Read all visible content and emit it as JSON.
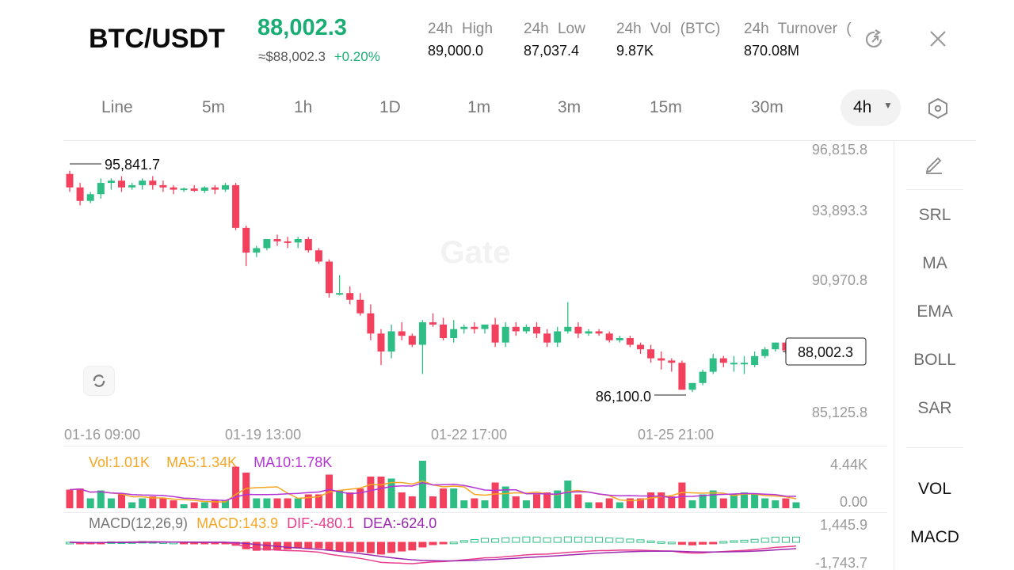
{
  "header": {
    "pair": "BTC/USDT",
    "price": "88,002.3",
    "fiat_price": "≈$88,002.3",
    "change": "+0.20%",
    "stats": [
      {
        "label": "24h High",
        "value": "89,000.0"
      },
      {
        "label": "24h Low",
        "value": "87,037.4"
      },
      {
        "label": "24h Vol (BTC)",
        "value": "9.87K"
      },
      {
        "label": "24h Turnover (",
        "value": "870.08M"
      }
    ]
  },
  "toolbar": {
    "intervals": [
      "Line",
      "5m",
      "1h",
      "1D",
      "1m",
      "3m",
      "15m",
      "30m"
    ],
    "active_interval": "4h"
  },
  "chart": {
    "price_axis": [
      "96,815.8",
      "93,893.3",
      "90,970.8",
      "85,125.8"
    ],
    "time_axis": [
      "01-16 09:00",
      "01-19 13:00",
      "01-22 17:00",
      "01-25 21:00"
    ],
    "high_label": "95,841.7",
    "low_label": "86,100.0",
    "last_price": "88,002.3",
    "watermark": "Gate"
  },
  "indicators_side": [
    "SRL",
    "MA",
    "EMA",
    "BOLL",
    "SAR"
  ],
  "sub_panels_side": [
    "VOL",
    "MACD"
  ],
  "volume": {
    "vol": "Vol:1.01K",
    "ma5": "MA5:1.34K",
    "ma10": "MA10:1.78K",
    "axis_top": "4.44K",
    "axis_bottom": "0.00"
  },
  "macd": {
    "label": "MACD(12,26,9)",
    "macd": "MACD:143.9",
    "dif": "DIF:-480.1",
    "dea": "DEA:-624.0",
    "axis_top": "1,445.9",
    "axis_bottom": "-1,743.7"
  },
  "colors": {
    "up": "#2ebd85",
    "down": "#f2405d",
    "ma5": "#f5a623",
    "ma10": "#b435d6",
    "dif": "#e83e8c",
    "dea": "#9c27b0"
  },
  "chart_data": {
    "type": "candlestick",
    "title": "",
    "ylim": [
      85125.8,
      96815.8
    ],
    "interval": "4h",
    "candles": [
      [
        95700,
        95841,
        95100,
        94900
      ],
      [
        95100,
        95300,
        94500,
        94300
      ],
      [
        94500,
        94900,
        94800,
        94400
      ],
      [
        94800,
        95500,
        95300,
        94600
      ],
      [
        95300,
        95500,
        95400,
        95000
      ],
      [
        95400,
        95600,
        95100,
        94900
      ],
      [
        95100,
        95300,
        95200,
        95000
      ],
      [
        95200,
        95500,
        95400,
        95000
      ],
      [
        95400,
        95600,
        95200,
        95000
      ],
      [
        95200,
        95400,
        95100,
        94900
      ],
      [
        95100,
        95200,
        95000,
        94800
      ],
      [
        95000,
        95100,
        95050,
        94900
      ],
      [
        95050,
        95200,
        94950,
        94900
      ],
      [
        94950,
        95150,
        95100,
        94850
      ],
      [
        95100,
        95200,
        95000,
        94800
      ],
      [
        95000,
        95300,
        95200,
        94900
      ],
      [
        95200,
        95300,
        93300,
        93200
      ],
      [
        93300,
        93400,
        92200,
        91600
      ],
      [
        92200,
        92500,
        92400,
        92000
      ],
      [
        92400,
        92800,
        92800,
        92300
      ],
      [
        92800,
        93000,
        92700,
        92500
      ],
      [
        92700,
        92900,
        92650,
        92400
      ],
      [
        92650,
        92900,
        92800,
        92400
      ],
      [
        92800,
        92900,
        92300,
        92200
      ],
      [
        92300,
        92400,
        91800,
        91700
      ],
      [
        91800,
        91900,
        90400,
        90200
      ],
      [
        90400,
        91200,
        90400,
        90300
      ],
      [
        90400,
        90700,
        90100,
        89900
      ],
      [
        90100,
        90400,
        89500,
        89400
      ],
      [
        89500,
        89900,
        88600,
        88300
      ],
      [
        88600,
        88800,
        87800,
        87200
      ],
      [
        87800,
        89000,
        88700,
        87500
      ],
      [
        88700,
        89100,
        88500,
        88300
      ],
      [
        88500,
        88600,
        88100,
        88000
      ],
      [
        88100,
        89200,
        89100,
        86800
      ],
      [
        89100,
        89500,
        89000,
        88900
      ],
      [
        89000,
        89300,
        88400,
        88300
      ],
      [
        88400,
        89200,
        88800,
        88200
      ],
      [
        88800,
        89000,
        88900,
        88600
      ],
      [
        88900,
        89100,
        88800,
        88600
      ],
      [
        88800,
        89000,
        89000,
        88600
      ],
      [
        89000,
        89300,
        88200,
        88000
      ],
      [
        88200,
        89100,
        88900,
        88000
      ],
      [
        88900,
        89100,
        88700,
        88500
      ],
      [
        88700,
        89000,
        88900,
        88600
      ],
      [
        88900,
        89100,
        88600,
        88400
      ],
      [
        88600,
        88800,
        88200,
        88000
      ],
      [
        88200,
        88900,
        88700,
        88000
      ],
      [
        88700,
        90000,
        88900,
        88600
      ],
      [
        88900,
        89100,
        88600,
        88400
      ],
      [
        88600,
        88800,
        88700,
        88500
      ],
      [
        88700,
        88800,
        88600,
        88500
      ],
      [
        88600,
        88700,
        88300,
        88200
      ],
      [
        88300,
        88500,
        88400,
        88200
      ],
      [
        88400,
        88500,
        88100,
        88000
      ],
      [
        88100,
        88200,
        87900,
        87700
      ],
      [
        87900,
        88100,
        87500,
        87300
      ],
      [
        87500,
        87800,
        87400,
        87000
      ],
      [
        87400,
        87500,
        87300,
        86900
      ],
      [
        87300,
        87400,
        86100,
        86100
      ],
      [
        86100,
        86400,
        86400,
        86000
      ],
      [
        86400,
        87000,
        86900,
        86300
      ],
      [
        86900,
        87700,
        87500,
        86800
      ],
      [
        87500,
        87600,
        87300,
        87100
      ],
      [
        87300,
        87600,
        87300,
        86900
      ],
      [
        87300,
        87600,
        87300,
        86800
      ],
      [
        87200,
        87800,
        87600,
        87100
      ],
      [
        87600,
        88000,
        87900,
        87500
      ],
      [
        87900,
        88200,
        88200,
        87800
      ],
      [
        88200,
        88200,
        87850,
        87700
      ],
      [
        87850,
        88100,
        88002,
        87800
      ]
    ]
  }
}
